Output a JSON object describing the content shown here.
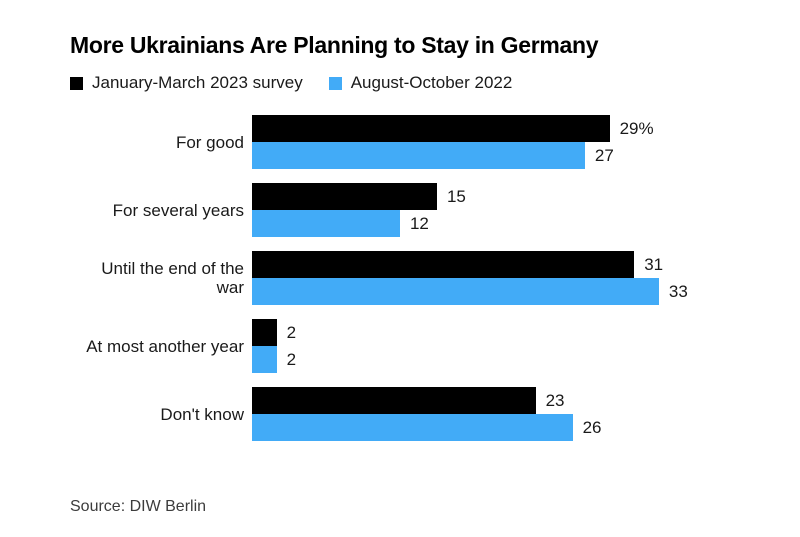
{
  "chart": {
    "title": "More Ukrainians Are Planning to Stay in Germany",
    "source": "Source: DIW Berlin"
  },
  "chart_data": {
    "type": "bar",
    "orientation": "horizontal",
    "title": "More Ukrainians Are Planning to Stay in Germany",
    "categories": [
      "For good",
      "For several years",
      "Until the end of the war",
      "At most another year",
      "Don't know"
    ],
    "series": [
      {
        "name": "January-March 2023 survey",
        "color": "#000000",
        "values": [
          29,
          15,
          31,
          2,
          23
        ],
        "value_labels": [
          "29%",
          "15",
          "31",
          "2",
          "23"
        ]
      },
      {
        "name": "August-October 2022",
        "color": "#42ABF7",
        "values": [
          27,
          12,
          33,
          2,
          26
        ],
        "value_labels": [
          "27",
          "12",
          "33",
          "2",
          "26"
        ]
      }
    ],
    "unit": "%",
    "xlim": [
      0,
      33
    ],
    "grid": false,
    "axes_visible": false,
    "legend_position": "top",
    "source": "Source: DIW Berlin"
  }
}
